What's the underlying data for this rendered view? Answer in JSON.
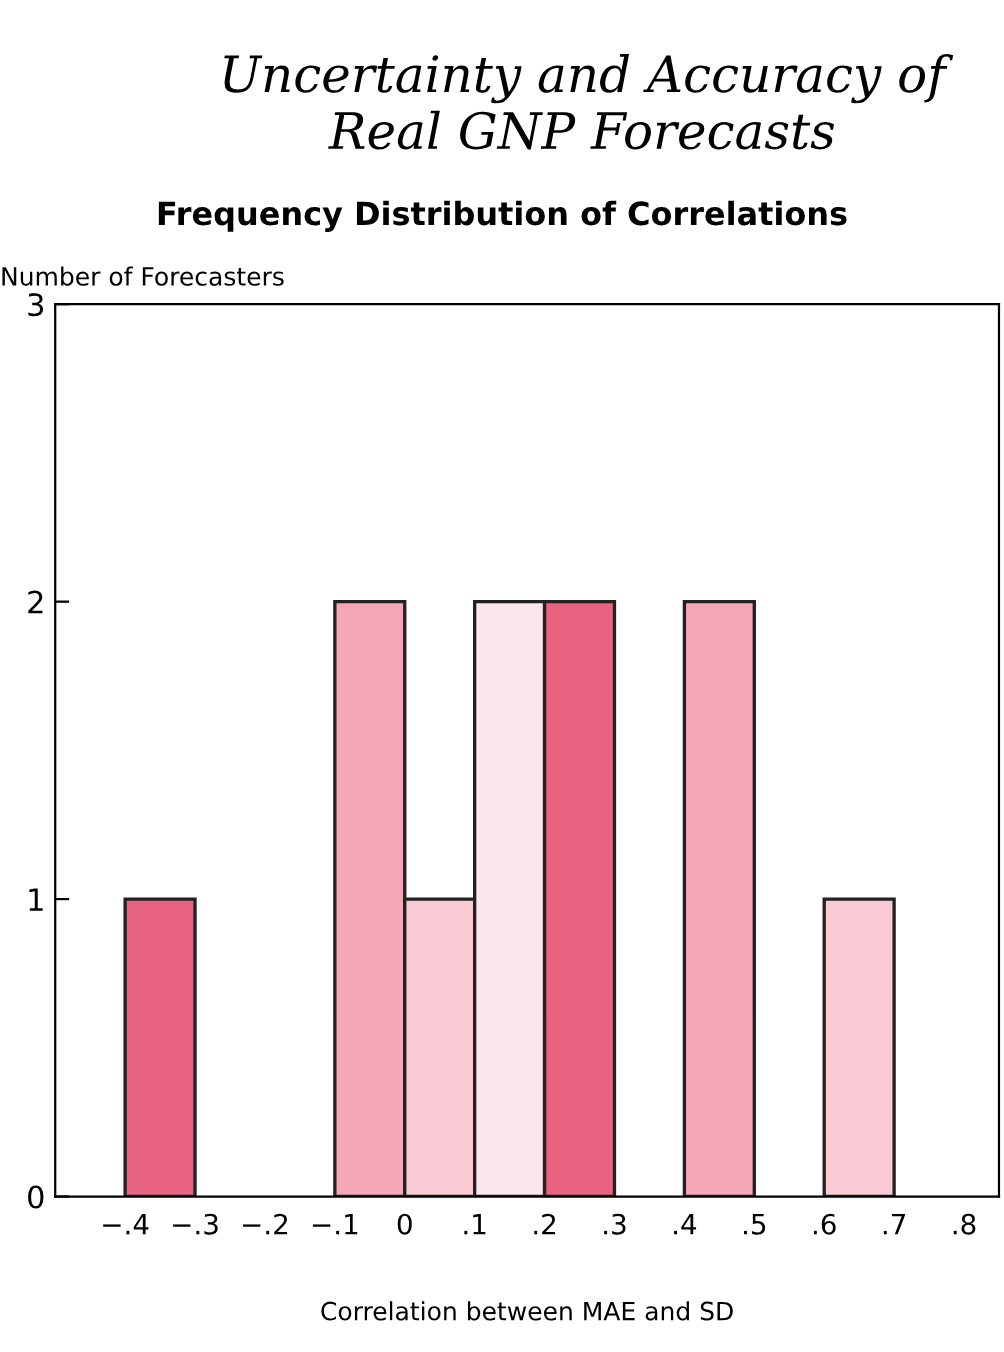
{
  "chart_data": {
    "type": "histogram",
    "title": "Uncertainty and Accuracy of Real GNP Forecasts",
    "subtitle": "Frequency Distribution of Correlations",
    "xlabel": "Correlation between MAE and SD",
    "ylabel": "Number of Forecasters",
    "bins": [
      -0.4,
      -0.3,
      -0.2,
      -0.1,
      0,
      0.1,
      0.2,
      0.3,
      0.4,
      0.5,
      0.6,
      0.7,
      0.8
    ],
    "values": [
      1,
      0,
      0,
      2,
      1,
      2,
      2,
      0,
      2,
      0,
      1,
      0
    ],
    "colors": [
      "#e8637f",
      "#f4a7b9",
      "#f4a7b9",
      "#f4a7b9",
      "#f9c9d4",
      "#fce6ee",
      "#e8637f",
      "#f4a7b9",
      "#f4a7b9",
      "#f4a7b9",
      "#f9c9d4",
      "#f9c9d4"
    ],
    "xlim": [
      -0.5,
      0.85
    ],
    "ylim": [
      0,
      3
    ],
    "xticks": [
      {
        "value": -0.4,
        "label": "−.4"
      },
      {
        "value": -0.3,
        "label": "−.3"
      },
      {
        "value": -0.2,
        "label": "−.2"
      },
      {
        "value": -0.1,
        "label": "−.1"
      },
      {
        "value": 0,
        "label": "0"
      },
      {
        "value": 0.1,
        "label": ".1"
      },
      {
        "value": 0.2,
        "label": ".2"
      },
      {
        "value": 0.3,
        "label": ".3"
      },
      {
        "value": 0.4,
        "label": ".4"
      },
      {
        "value": 0.5,
        "label": ".5"
      },
      {
        "value": 0.6,
        "label": ".6"
      },
      {
        "value": 0.7,
        "label": ".7"
      },
      {
        "value": 0.8,
        "label": ".8"
      }
    ],
    "yticks": [
      0,
      1,
      2,
      3
    ]
  }
}
